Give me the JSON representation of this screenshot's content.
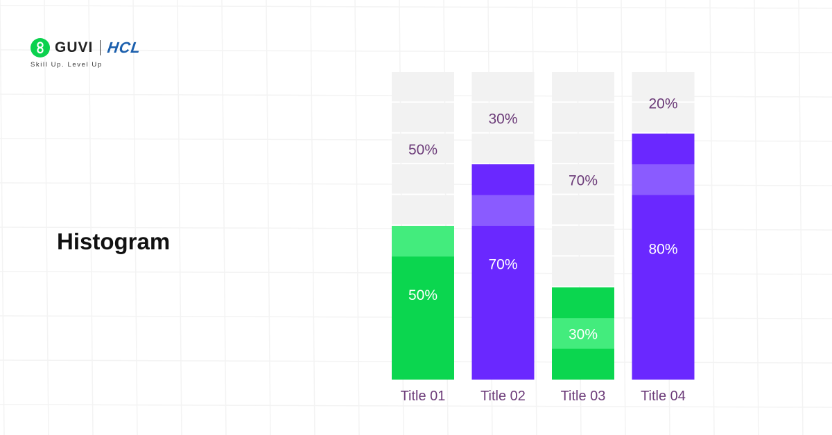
{
  "brand": {
    "guvi_text": "GUVI",
    "hcl_text": "HCL",
    "tagline": "Skill Up. Level Up",
    "guvi_color": "#0BD14E",
    "hcl_color": "#1B5FAD"
  },
  "chart_data": {
    "type": "bar",
    "title": "Histogram",
    "categories": [
      "Title 01",
      "Title 02",
      "Title 03",
      "Title 04"
    ],
    "ylim": [
      0,
      100
    ],
    "grid": false,
    "legend": "none",
    "bars": [
      {
        "category": "Title 01",
        "value": 50,
        "remainder": 50,
        "value_label": "50%",
        "remainder_label": "50%",
        "color": "#0BD64F",
        "light_color": "#43EC7D"
      },
      {
        "category": "Title 02",
        "value": 70,
        "remainder": 30,
        "value_label": "70%",
        "remainder_label": "30%",
        "color": "#6A28FF",
        "light_color": "#8A5BFF"
      },
      {
        "category": "Title 03",
        "value": 30,
        "remainder": 70,
        "value_label": "30%",
        "remainder_label": "70%",
        "color": "#0BD64F",
        "light_color": "#43EC7D"
      },
      {
        "category": "Title 04",
        "value": 80,
        "remainder": 20,
        "value_label": "80%",
        "remainder_label": "20%",
        "color": "#6A28FF",
        "light_color": "#8A5BFF"
      }
    ],
    "colors": {
      "empty_segment": "#F2F2F2",
      "label_dark": "#6B3A78",
      "label_light": "#FFFFFF",
      "category_label": "#6B3A78"
    }
  }
}
